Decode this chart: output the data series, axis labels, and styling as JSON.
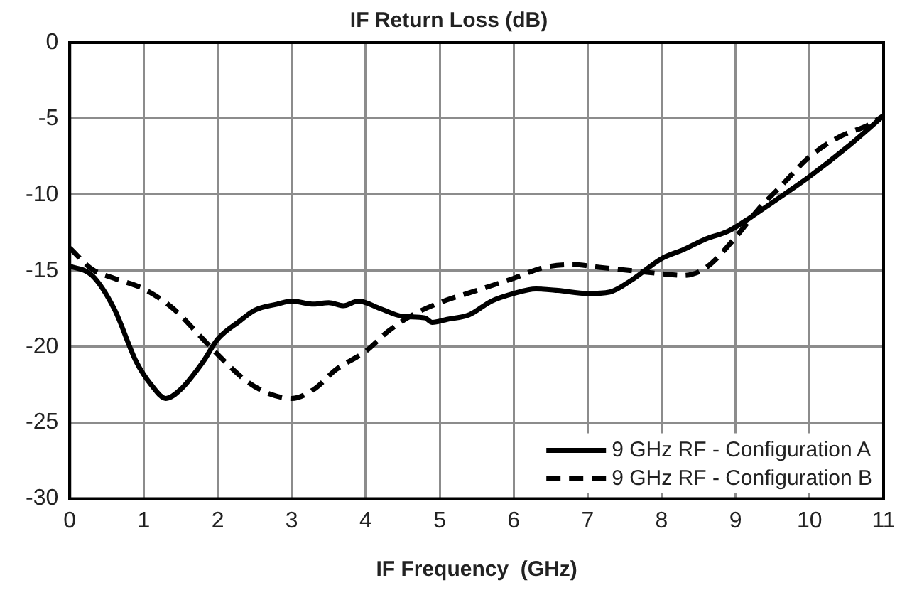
{
  "chart_data": {
    "type": "line",
    "title": "IF Return Loss (dB)",
    "xlabel": "IF Frequency  (GHz)",
    "xlim": [
      0,
      11
    ],
    "xticks": [
      0,
      1,
      2,
      3,
      4,
      5,
      6,
      7,
      8,
      9,
      10,
      11
    ],
    "ylim": [
      -30,
      0
    ],
    "yticks": [
      -30,
      -25,
      -20,
      -15,
      -10,
      -5,
      0
    ],
    "grid": true,
    "legend": "bottom right",
    "marker": "none",
    "series": [
      {
        "name": "9 GHz RF - Configuration A",
        "color": "#000000",
        "line_style": "solid",
        "x": [
          0,
          0.3,
          0.6,
          0.9,
          1.1,
          1.3,
          1.5,
          1.8,
          2.0,
          2.3,
          2.5,
          2.8,
          3.0,
          3.3,
          3.5,
          3.7,
          3.9,
          4.2,
          4.5,
          4.8,
          4.9,
          5.1,
          5.4,
          5.7,
          6.0,
          6.3,
          6.6,
          7.0,
          7.3,
          7.6,
          8.0,
          8.3,
          8.6,
          8.9,
          9.2,
          9.5,
          10.0,
          10.5,
          11
        ],
        "values": [
          -14.7,
          -15.3,
          -17.5,
          -21,
          -22.5,
          -23.4,
          -22.8,
          -21,
          -19.5,
          -18.3,
          -17.6,
          -17.2,
          -17.0,
          -17.2,
          -17.1,
          -17.3,
          -17.0,
          -17.5,
          -18.0,
          -18.1,
          -18.4,
          -18.2,
          -17.9,
          -17.0,
          -16.5,
          -16.2,
          -16.3,
          -16.5,
          -16.4,
          -15.6,
          -14.2,
          -13.6,
          -12.9,
          -12.4,
          -11.5,
          -10.5,
          -8.8,
          -6.9,
          -4.8
        ]
      },
      {
        "name": "9 GHz RF - Configuration B",
        "color": "#000000",
        "line_style": "dashed",
        "x": [
          0,
          0.3,
          0.6,
          1.0,
          1.4,
          1.8,
          2.1,
          2.4,
          2.7,
          3.0,
          3.3,
          3.6,
          4.0,
          4.3,
          4.6,
          5.0,
          5.5,
          6.0,
          6.4,
          6.8,
          7.2,
          7.6,
          8.0,
          8.3,
          8.6,
          9.0,
          9.3,
          9.6,
          10.0,
          10.4,
          10.8,
          11
        ],
        "values": [
          -13.5,
          -14.9,
          -15.5,
          -16.2,
          -17.5,
          -19.5,
          -21,
          -22.3,
          -23.1,
          -23.4,
          -22.8,
          -21.5,
          -20.3,
          -19.0,
          -18.0,
          -17.1,
          -16.3,
          -15.5,
          -14.8,
          -14.6,
          -14.8,
          -15.0,
          -15.2,
          -15.3,
          -14.8,
          -12.8,
          -11.0,
          -9.5,
          -7.5,
          -6.2,
          -5.4,
          -4.8
        ]
      }
    ]
  }
}
